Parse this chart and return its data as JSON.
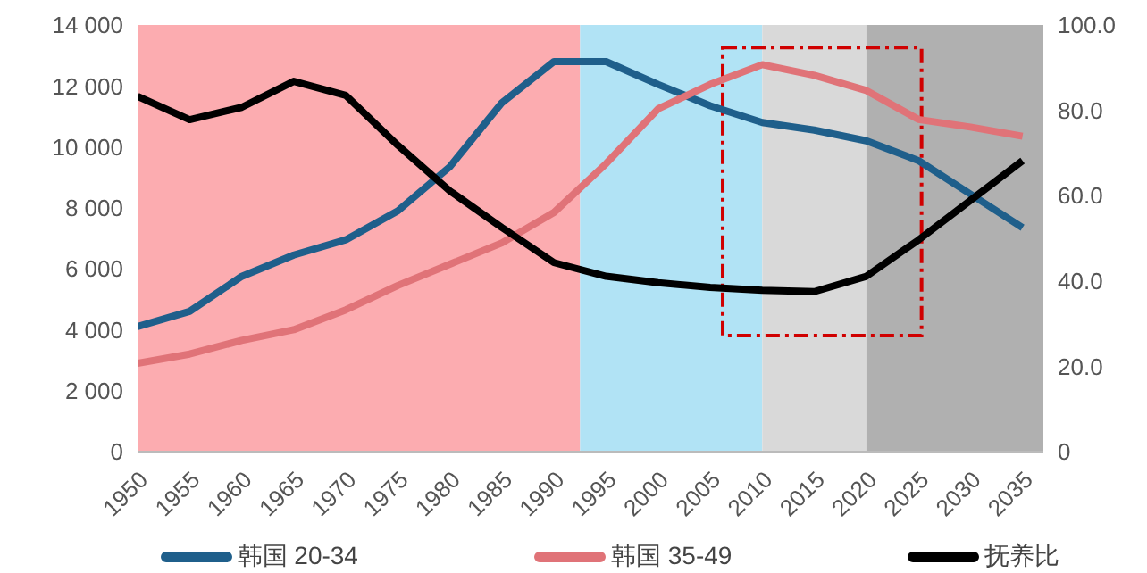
{
  "chart_data": {
    "type": "line",
    "x": [
      1950,
      1955,
      1960,
      1965,
      1970,
      1975,
      1980,
      1985,
      1990,
      1995,
      2000,
      2005,
      2010,
      2015,
      2020,
      2025,
      2030,
      2035
    ],
    "series": [
      {
        "name": "韩国 20-34",
        "color": "#1f5f8b",
        "values": [
          4100,
          4600,
          5750,
          6450,
          6950,
          7900,
          9350,
          11450,
          12800,
          12800,
          12050,
          11350,
          10800,
          10550,
          10200,
          9550,
          8450,
          7350
        ]
      },
      {
        "name": "韩国 35-49",
        "color": "#e07378",
        "values": [
          2900,
          3200,
          3650,
          4000,
          4650,
          5450,
          6150,
          6850,
          7850,
          9450,
          11250,
          12050,
          12700,
          12350,
          11850,
          10900,
          10650,
          10350
        ]
      },
      {
        "name": "抚养比",
        "color": "#000000",
        "axis": "y2",
        "values": [
          83.3,
          77.8,
          80.7,
          86.8,
          83.5,
          71.8,
          61.1,
          52.5,
          44.3,
          41.1,
          39.6,
          38.5,
          37.8,
          37.5,
          41.1,
          49.6,
          58.9,
          68.2
        ]
      }
    ],
    "xlim": [
      1950,
      2037
    ],
    "xticks": [
      1950,
      1955,
      1960,
      1965,
      1970,
      1975,
      1980,
      1985,
      1990,
      1995,
      2000,
      2005,
      2010,
      2015,
      2020,
      2025,
      2030,
      2035
    ],
    "ylim": [
      0,
      14000
    ],
    "yticks": [
      0,
      {
        "value": 2000,
        "label": "2 000"
      },
      {
        "value": 4000,
        "label": "4 000"
      },
      {
        "value": 6000,
        "label": "6 000"
      },
      {
        "value": 8000,
        "label": "8 000"
      },
      {
        "value": 10000,
        "label": "10 000"
      },
      {
        "value": 12000,
        "label": "12 000"
      },
      {
        "value": 14000,
        "label": "14 000"
      }
    ],
    "y2lim": [
      0,
      100
    ],
    "y2ticks": [
      0,
      {
        "value": 20,
        "label": "20.0"
      },
      {
        "value": 40,
        "label": "40.0"
      },
      {
        "value": 60,
        "label": "60.0"
      },
      {
        "value": 80,
        "label": "80.0"
      },
      {
        "value": 100,
        "label": "100.0"
      }
    ],
    "bands": [
      {
        "axis": "x",
        "from": 1950,
        "to": 1992.5,
        "color": "#fcacb0"
      },
      {
        "axis": "x",
        "from": 1992.5,
        "to": 2010,
        "color": "#b1e3f5"
      },
      {
        "axis": "x",
        "from": 2010,
        "to": 2020,
        "color": "#d9d9d9"
      },
      {
        "axis": "x",
        "from": 2020,
        "to": 2037,
        "color": "#b0b0b0"
      }
    ],
    "grid": false,
    "legend": "bottom",
    "marker": "none",
    "line_style": "solid"
  }
}
